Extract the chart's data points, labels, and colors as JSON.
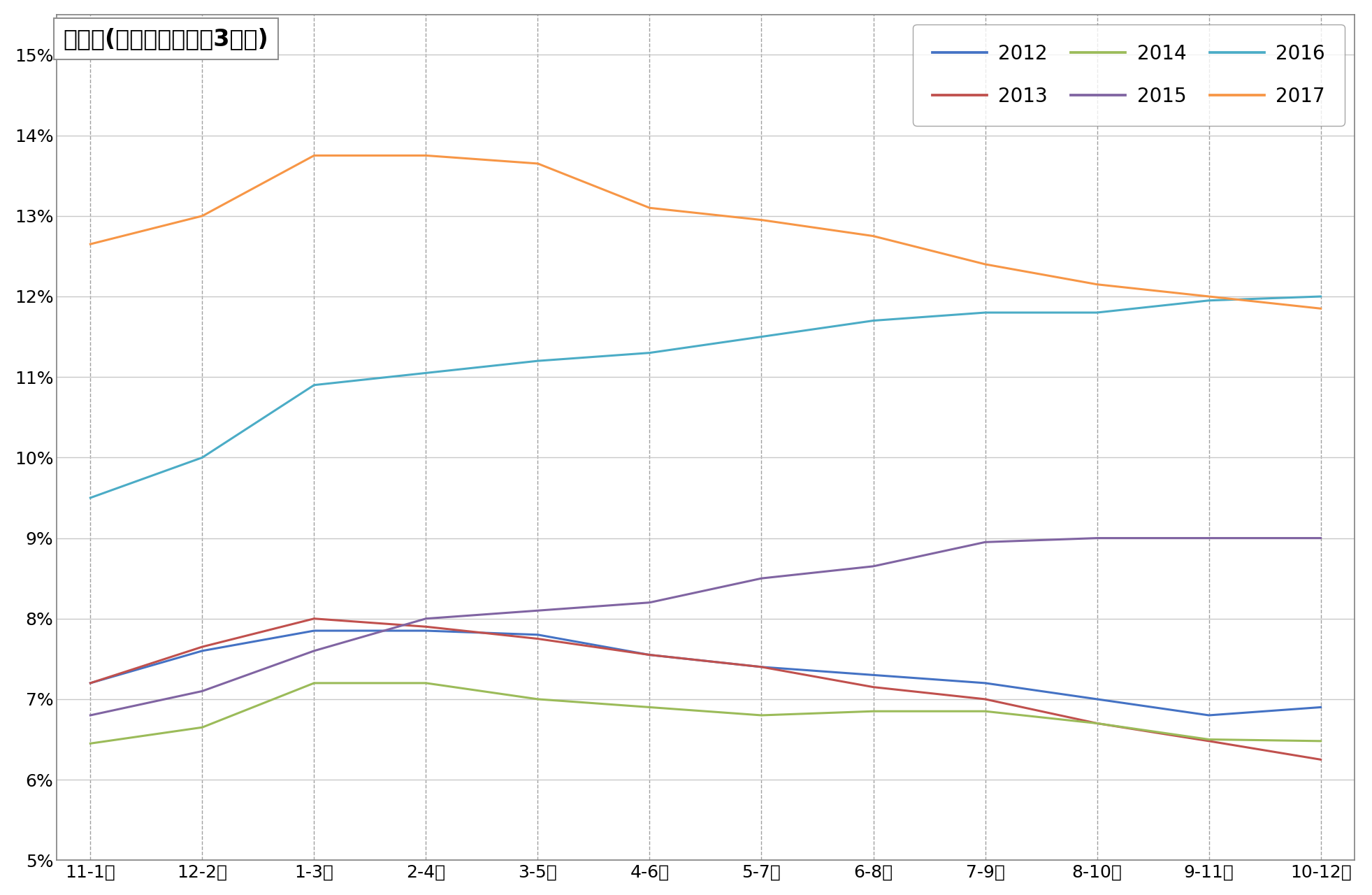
{
  "title": "失業率(毎月発表の直近3ヵ月)",
  "ylim": [
    0.05,
    0.155
  ],
  "yticks": [
    0.05,
    0.06,
    0.07,
    0.08,
    0.09,
    0.1,
    0.11,
    0.12,
    0.13,
    0.14,
    0.15
  ],
  "ytick_labels": [
    "5%",
    "6%",
    "7%",
    "8%",
    "9%",
    "10%",
    "11%",
    "12%",
    "13%",
    "14%",
    "15%"
  ],
  "x_labels": [
    "11-1月",
    "12-2月",
    "1-3月",
    "2-4月",
    "3-5月",
    "4-6月",
    "5-7月",
    "6-8月",
    "7-9月",
    "8-10月",
    "9-11月",
    "10-12月"
  ],
  "series": {
    "2012": {
      "color": "#4472C4",
      "values": [
        0.072,
        0.076,
        0.0785,
        0.0785,
        0.078,
        0.0755,
        0.074,
        0.073,
        0.072,
        0.07,
        0.068,
        0.069
      ]
    },
    "2013": {
      "color": "#C0504D",
      "values": [
        0.072,
        0.0765,
        0.08,
        0.079,
        0.0775,
        0.0755,
        0.074,
        0.0715,
        0.07,
        0.067,
        0.0648,
        0.0625
      ]
    },
    "2014": {
      "color": "#9BBB59",
      "values": [
        0.0645,
        0.0665,
        0.072,
        0.072,
        0.07,
        0.069,
        0.068,
        0.0685,
        0.0685,
        0.067,
        0.065,
        0.0648
      ]
    },
    "2015": {
      "color": "#8064A2",
      "values": [
        0.068,
        0.071,
        0.076,
        0.08,
        0.081,
        0.082,
        0.085,
        0.0865,
        0.0895,
        0.09,
        0.09,
        0.09
      ]
    },
    "2016": {
      "color": "#4BACC6",
      "values": [
        0.095,
        0.1,
        0.109,
        0.1105,
        0.112,
        0.113,
        0.115,
        0.117,
        0.118,
        0.118,
        0.1195,
        0.12
      ]
    },
    "2017": {
      "color": "#F79646",
      "values": [
        0.1265,
        0.13,
        0.1375,
        0.1375,
        0.1365,
        0.131,
        0.1295,
        0.1275,
        0.124,
        0.1215,
        0.12,
        0.1185
      ]
    }
  },
  "background_color": "#FFFFFF",
  "plot_bg_color": "#FFFFFF",
  "hgrid_color": "#C8C8C8",
  "vgrid_color": "#A0A0A0",
  "legend_order": [
    "2012",
    "2013",
    "2014",
    "2015",
    "2016",
    "2017"
  ],
  "title_fontsize": 24,
  "tick_fontsize": 18,
  "legend_fontsize": 20,
  "line_width": 2.2
}
